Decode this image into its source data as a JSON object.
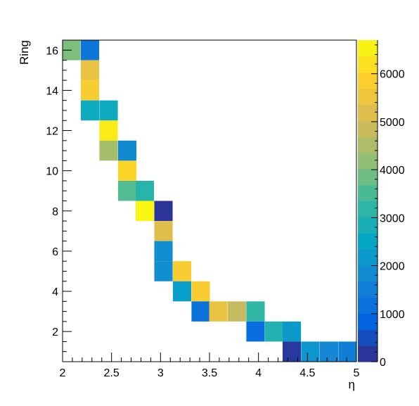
{
  "chart_data": {
    "type": "heatmap",
    "title": "",
    "xlabel": "η",
    "ylabel": "Ring",
    "xlim": [
      2,
      5
    ],
    "ylim": [
      0.5,
      16.5
    ],
    "x_bin_width": 0.1875,
    "zlim": [
      0,
      6700
    ],
    "x_ticks": [
      2,
      2.5,
      3,
      3.5,
      4,
      4.5,
      5
    ],
    "x_tick_labels": [
      "2",
      "2.5",
      "3",
      "3.5",
      "4",
      "4.5",
      "5"
    ],
    "y_ticks": [
      2,
      4,
      6,
      8,
      10,
      12,
      14,
      16
    ],
    "y_tick_labels": [
      "2",
      "4",
      "6",
      "8",
      "10",
      "12",
      "14",
      "16"
    ],
    "z_ticks": [
      0,
      1000,
      2000,
      3000,
      4000,
      5000,
      6000
    ],
    "z_tick_labels": [
      "0",
      "1000",
      "2000",
      "3000",
      "4000",
      "5000",
      "6000"
    ],
    "colormap": [
      "#352a87",
      "#0363e1",
      "#1485d4",
      "#06a7c6",
      "#38b99e",
      "#92bf73",
      "#d9ba56",
      "#fcce2e",
      "#f9fb0e"
    ],
    "cells": [
      {
        "x": 2.09,
        "ring": 16,
        "z": 4000
      },
      {
        "x": 2.28,
        "ring": 16,
        "z": 1300
      },
      {
        "x": 2.28,
        "ring": 15,
        "z": 5400
      },
      {
        "x": 2.28,
        "ring": 14,
        "z": 5800
      },
      {
        "x": 2.28,
        "ring": 13,
        "z": 2650
      },
      {
        "x": 2.47,
        "ring": 13,
        "z": 2650
      },
      {
        "x": 2.47,
        "ring": 12,
        "z": 6400
      },
      {
        "x": 2.47,
        "ring": 11,
        "z": 4400
      },
      {
        "x": 2.66,
        "ring": 11,
        "z": 1800
      },
      {
        "x": 2.66,
        "ring": 10,
        "z": 6000
      },
      {
        "x": 2.66,
        "ring": 9,
        "z": 3600
      },
      {
        "x": 2.84,
        "ring": 9,
        "z": 3100
      },
      {
        "x": 2.84,
        "ring": 8,
        "z": 6600
      },
      {
        "x": 3.03,
        "ring": 8,
        "z": 150
      },
      {
        "x": 3.03,
        "ring": 7,
        "z": 5200
      },
      {
        "x": 3.03,
        "ring": 6,
        "z": 1900
      },
      {
        "x": 3.03,
        "ring": 5,
        "z": 1900
      },
      {
        "x": 3.22,
        "ring": 5,
        "z": 5800
      },
      {
        "x": 3.22,
        "ring": 4,
        "z": 2300
      },
      {
        "x": 3.41,
        "ring": 4,
        "z": 5800
      },
      {
        "x": 3.41,
        "ring": 3,
        "z": 1200
      },
      {
        "x": 3.59,
        "ring": 3,
        "z": 5400
      },
      {
        "x": 3.78,
        "ring": 3,
        "z": 4800
      },
      {
        "x": 3.97,
        "ring": 3,
        "z": 3200
      },
      {
        "x": 3.97,
        "ring": 2,
        "z": 1100
      },
      {
        "x": 4.16,
        "ring": 2,
        "z": 3000
      },
      {
        "x": 4.34,
        "ring": 2,
        "z": 2200
      },
      {
        "x": 4.34,
        "ring": 1,
        "z": 200
      },
      {
        "x": 4.53,
        "ring": 1,
        "z": 2100
      },
      {
        "x": 4.72,
        "ring": 1,
        "z": 1700
      },
      {
        "x": 4.91,
        "ring": 1,
        "z": 1500
      }
    ]
  }
}
